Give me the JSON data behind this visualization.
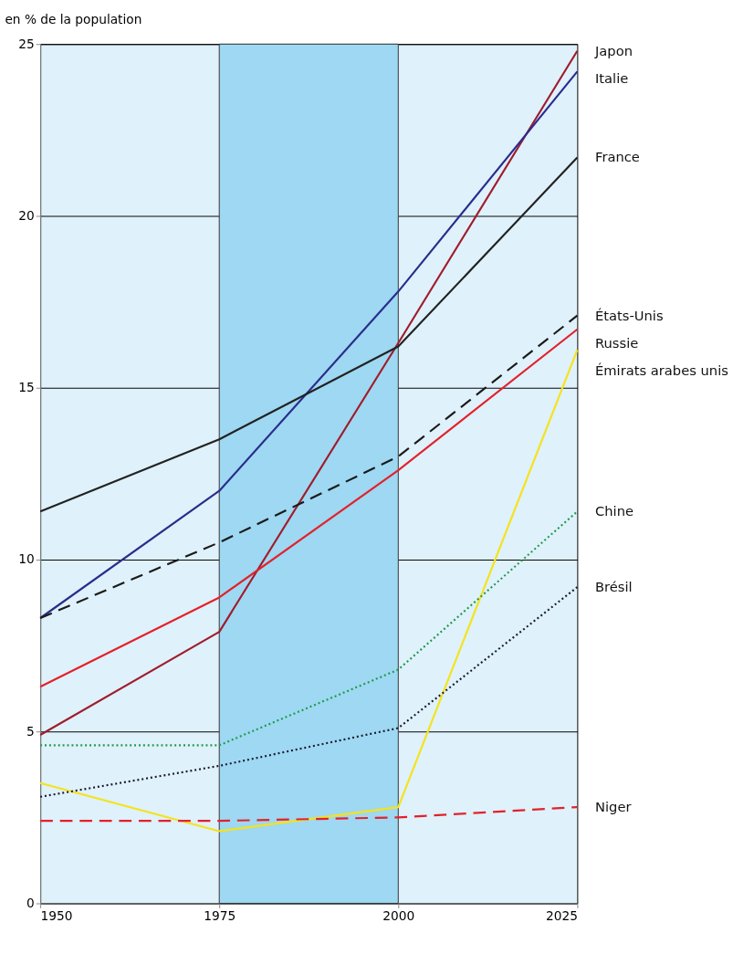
{
  "chart_data": {
    "type": "line",
    "ylabel": "en % de la population",
    "x": [
      1950,
      1975,
      2000,
      2025
    ],
    "series": [
      {
        "name": "Japon",
        "color": "#a01c2c",
        "line_style": "solid",
        "values": [
          4.9,
          7.9,
          16.3,
          24.8
        ]
      },
      {
        "name": "Italie",
        "color": "#2b2d8c",
        "line_style": "solid",
        "values": [
          8.3,
          12.0,
          17.8,
          24.2
        ]
      },
      {
        "name": "France",
        "color": "#222222",
        "line_style": "solid",
        "values": [
          11.4,
          13.5,
          16.2,
          21.7
        ]
      },
      {
        "name": "États-Unis",
        "color": "#1a1a1a",
        "line_style": "dashed",
        "values": [
          8.3,
          10.5,
          13.0,
          17.1
        ]
      },
      {
        "name": "Russie",
        "color": "#e3212b",
        "line_style": "solid",
        "values": [
          6.3,
          8.9,
          12.6,
          16.7
        ]
      },
      {
        "name": "Émirats arabes unis",
        "color": "#f5e31a",
        "line_style": "solid",
        "values": [
          3.5,
          2.1,
          2.8,
          16.1
        ]
      },
      {
        "name": "Chine",
        "color": "#1e9a4a",
        "line_style": "dotted",
        "values": [
          4.6,
          4.6,
          6.8,
          11.4
        ]
      },
      {
        "name": "Brésil",
        "color": "#1a1a2e",
        "line_style": "dotted",
        "values": [
          3.1,
          4.0,
          5.1,
          9.2
        ]
      },
      {
        "name": "Niger",
        "color": "#e3212b",
        "line_style": "dashed",
        "values": [
          2.4,
          2.4,
          2.5,
          2.8
        ]
      }
    ],
    "xlim": [
      1950,
      2025
    ],
    "xticks": [
      1950,
      1975,
      2000,
      2025
    ],
    "ylim": [
      0,
      25
    ],
    "yticks": [
      0,
      5,
      10,
      15,
      20,
      25
    ],
    "bands": [
      {
        "axis": "x",
        "from": 1975,
        "to": 2000,
        "color": "#9ed8f2"
      }
    ],
    "grid": "y",
    "legend": false,
    "marker": "none"
  }
}
